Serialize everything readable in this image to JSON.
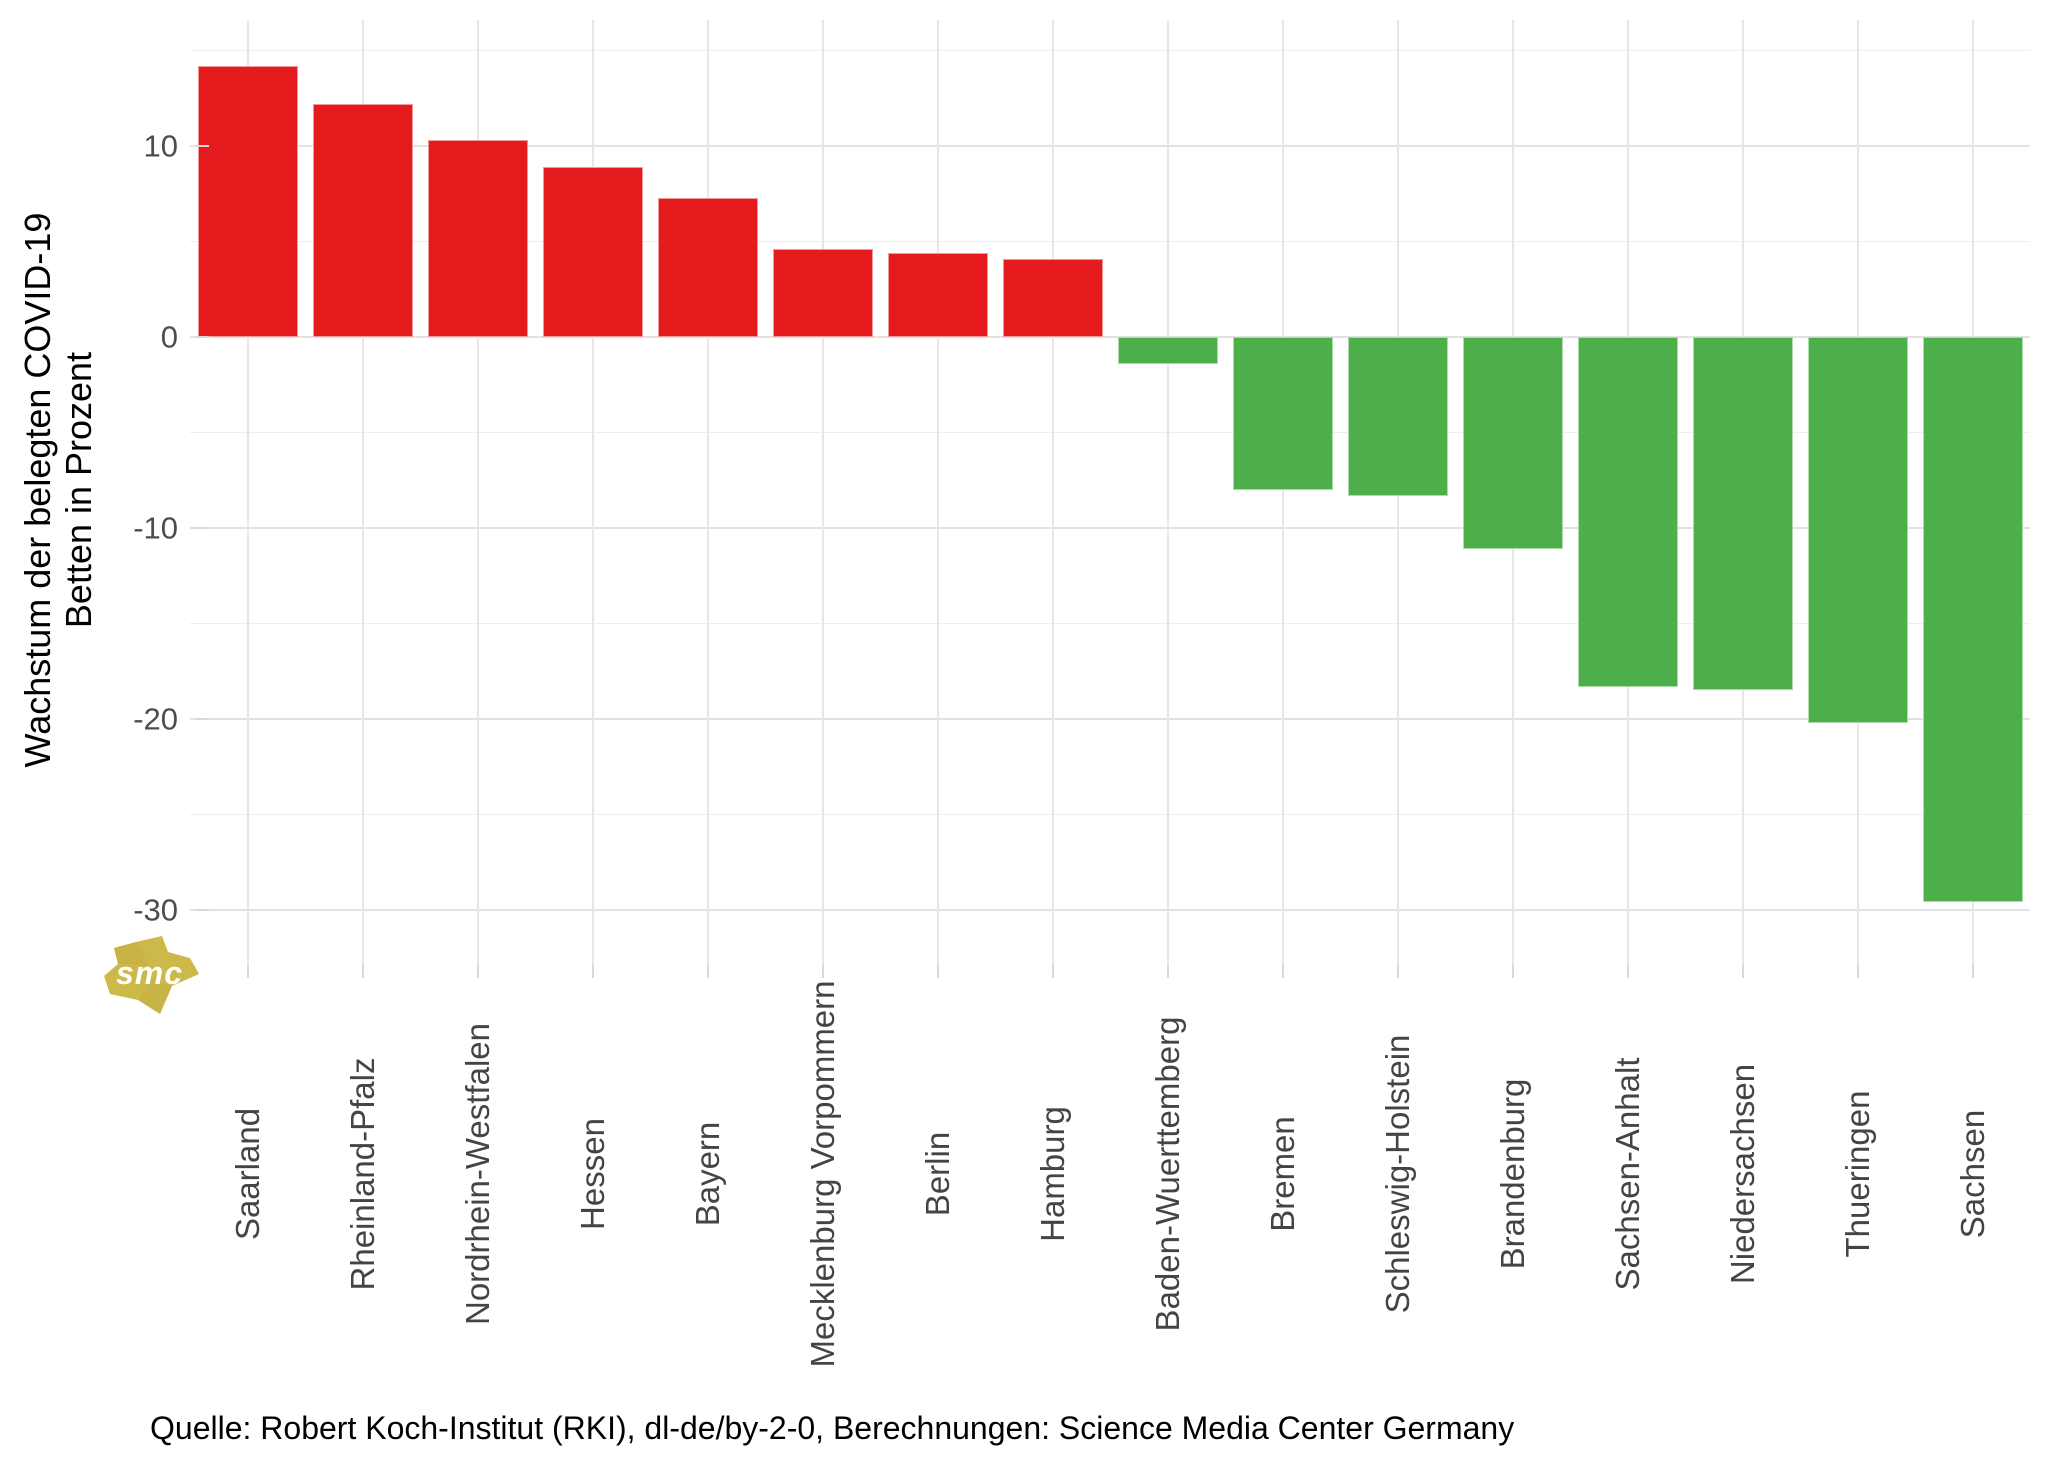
{
  "chart_data": {
    "type": "bar",
    "title": "",
    "ylabel_lines": [
      "Wachstum der belegten COVID-19",
      "Betten in Prozent"
    ],
    "xlabel": "",
    "categories": [
      "Saarland",
      "Rheinland-Pfalz",
      "Nordrhein-Westfalen",
      "Hessen",
      "Bayern",
      "Mecklenburg Vorpommern",
      "Berlin",
      "Hamburg",
      "Baden-Wuerttemberg",
      "Bremen",
      "Schleswig-Holstein",
      "Brandenburg",
      "Sachsen-Anhalt",
      "Niedersachsen",
      "Thueringen",
      "Sachsen"
    ],
    "values": [
      14.2,
      12.2,
      10.3,
      8.9,
      7.3,
      4.6,
      4.4,
      4.1,
      -1.4,
      -8.0,
      -8.3,
      -11.1,
      -18.3,
      -18.5,
      -20.2,
      -29.6
    ],
    "positive_color": "#e41a1c",
    "negative_color": "#4daf4a",
    "y_major_ticks": [
      10,
      0,
      -10,
      -20,
      -30
    ],
    "y_minor_ticks": [
      15,
      5,
      -5,
      -15,
      -25
    ],
    "ylim": [
      -32.9,
      16.6
    ],
    "grid": true,
    "legend_position": "none",
    "tick_label_color": "#4d4d4d",
    "grid_color": "#e2e2e2"
  },
  "footer": {
    "text": "Quelle: Robert Koch-Institut (RKI), dl-de/by-2-0, Berechnungen: Science Media Center Germany"
  },
  "watermark": {
    "text": "smc",
    "color": "#cdb94a"
  }
}
